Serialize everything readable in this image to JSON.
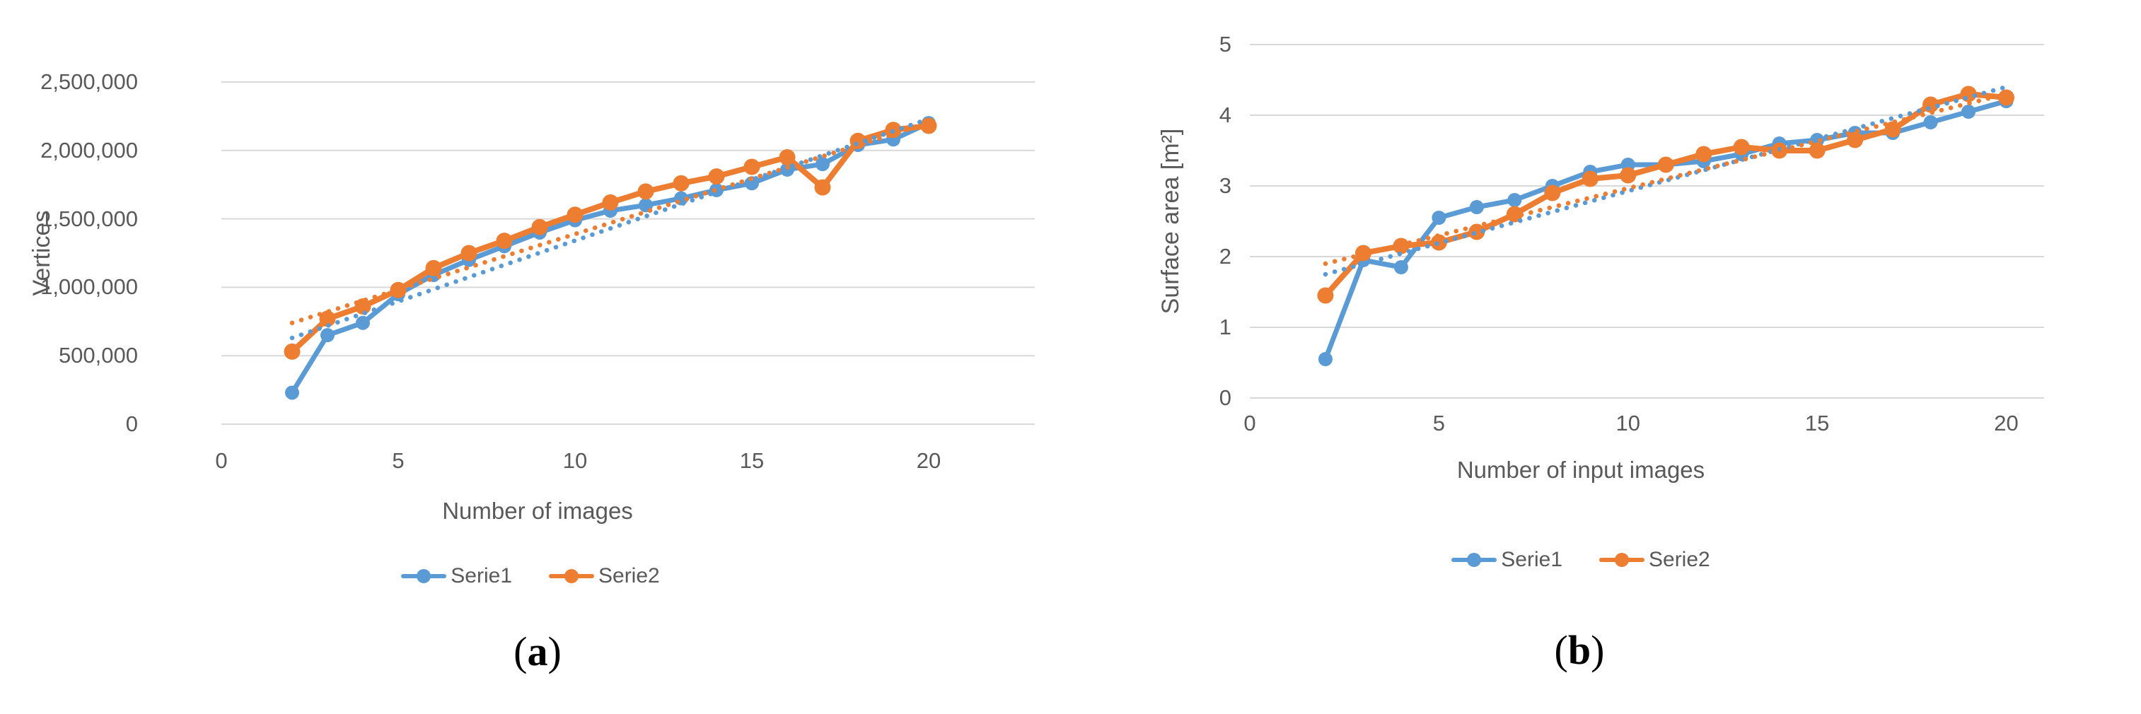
{
  "figure": {
    "background": "#ffffff",
    "text_color": "#595959",
    "gridline_color": "#D9D9D9",
    "panels": [
      {
        "caption": {
          "open": "(",
          "letter": "a",
          "close": ")"
        }
      },
      {
        "caption": {
          "open": "(",
          "letter": "b",
          "close": ")"
        }
      }
    ]
  },
  "chart_data": [
    {
      "type": "line",
      "title": "",
      "xlabel": "Number of images",
      "ylabel": "Vertices",
      "xlim": [
        0,
        23
      ],
      "ylim": [
        0,
        2500000
      ],
      "grid": true,
      "legend_position": "bottom",
      "xticks": [
        0,
        5,
        10,
        15,
        20
      ],
      "xtick_labels": [
        "0",
        "5",
        "10",
        "15",
        "20"
      ],
      "yticks": [
        0,
        500000,
        1000000,
        1500000,
        2000000,
        2500000
      ],
      "ytick_labels": [
        "0",
        "500,000",
        "1,000,000",
        "1,500,000",
        "2,000,000",
        "2,500,000"
      ],
      "x": [
        2,
        3,
        4,
        5,
        6,
        7,
        8,
        9,
        10,
        11,
        12,
        13,
        14,
        15,
        16,
        17,
        18,
        19,
        20
      ],
      "series": [
        {
          "name": "Serie1",
          "color": "#5B9BD5",
          "marker": "circle",
          "values": [
            230000,
            650000,
            740000,
            950000,
            1090000,
            1200000,
            1300000,
            1400000,
            1490000,
            1560000,
            1600000,
            1650000,
            1710000,
            1760000,
            1860000,
            1900000,
            2040000,
            2080000,
            2200000
          ]
        },
        {
          "name": "Serie2",
          "color": "#ED7D31",
          "marker": "circle",
          "values": [
            530000,
            770000,
            860000,
            980000,
            1140000,
            1250000,
            1340000,
            1440000,
            1530000,
            1620000,
            1700000,
            1760000,
            1810000,
            1880000,
            1950000,
            1730000,
            2070000,
            2150000,
            2180000
          ]
        }
      ],
      "trendlines": [
        {
          "series": "Serie1",
          "style": "dotted",
          "from": [
            2,
            630000
          ],
          "to": [
            20,
            2230000
          ]
        },
        {
          "series": "Serie2",
          "style": "dotted",
          "from": [
            2,
            740000
          ],
          "to": [
            20,
            2200000
          ]
        }
      ]
    },
    {
      "type": "line",
      "title": "",
      "xlabel": "Number of input images",
      "ylabel": "Surface area [m²]",
      "xlim": [
        0,
        21
      ],
      "ylim": [
        0,
        5
      ],
      "grid": true,
      "legend_position": "bottom",
      "xticks": [
        0,
        5,
        10,
        15,
        20
      ],
      "xtick_labels": [
        "0",
        "5",
        "10",
        "15",
        "20"
      ],
      "yticks": [
        0,
        1,
        2,
        3,
        4,
        5
      ],
      "ytick_labels": [
        "0",
        "1",
        "2",
        "3",
        "4",
        "5"
      ],
      "x": [
        2,
        3,
        4,
        5,
        6,
        7,
        8,
        9,
        10,
        11,
        12,
        13,
        14,
        15,
        16,
        17,
        18,
        19,
        20
      ],
      "series": [
        {
          "name": "Serie1",
          "color": "#5B9BD5",
          "marker": "circle",
          "values": [
            0.55,
            1.95,
            1.85,
            2.55,
            2.7,
            2.8,
            3.0,
            3.2,
            3.3,
            3.3,
            3.35,
            3.45,
            3.6,
            3.65,
            3.75,
            3.75,
            3.9,
            4.05,
            4.2
          ]
        },
        {
          "name": "Serie2",
          "color": "#ED7D31",
          "marker": "circle",
          "values": [
            1.45,
            2.05,
            2.15,
            2.2,
            2.35,
            2.6,
            2.9,
            3.1,
            3.15,
            3.3,
            3.45,
            3.55,
            3.5,
            3.5,
            3.65,
            3.8,
            4.15,
            4.3,
            4.25
          ]
        }
      ],
      "trendlines": [
        {
          "series": "Serie1",
          "style": "dotted",
          "from": [
            2,
            1.75
          ],
          "to": [
            20,
            4.4
          ]
        },
        {
          "series": "Serie2",
          "style": "dotted",
          "from": [
            2,
            1.9
          ],
          "to": [
            20,
            4.3
          ]
        }
      ]
    }
  ]
}
